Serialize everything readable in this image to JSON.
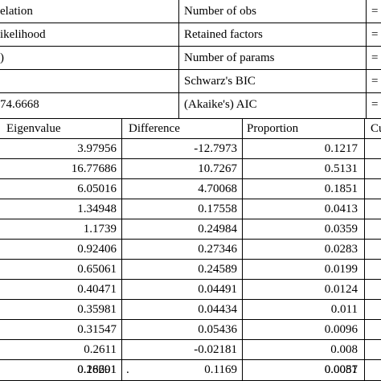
{
  "stats": [
    {
      "left": "elation",
      "right": "Number of obs",
      "eq": "="
    },
    {
      "left": "ikelihood",
      "right": "Retained factors",
      "eq": "="
    },
    {
      "left": ")",
      "right": "Number of params",
      "eq": "="
    },
    {
      "left": "",
      "right": "Schwarz's BIC",
      "eq": "="
    },
    {
      "left": "74.6668",
      "right": "(Akaike's) AIC",
      "eq": "="
    }
  ],
  "table": {
    "headers": {
      "eigenvalue": "Eigenvalue",
      "difference": "Difference",
      "proportion": "Proportion",
      "cumulative": "Cu"
    },
    "rows": [
      {
        "eigenvalue": "3.97956",
        "difference": "-12.7973",
        "proportion": "0.1217"
      },
      {
        "eigenvalue": "16.77686",
        "difference": "10.7267",
        "proportion": "0.5131"
      },
      {
        "eigenvalue": "6.05016",
        "difference": "4.70068",
        "proportion": "0.1851"
      },
      {
        "eigenvalue": "1.34948",
        "difference": "0.17558",
        "proportion": "0.0413"
      },
      {
        "eigenvalue": "1.1739",
        "difference": "0.24984",
        "proportion": "0.0359"
      },
      {
        "eigenvalue": "0.92406",
        "difference": "0.27346",
        "proportion": "0.0283"
      },
      {
        "eigenvalue": "0.65061",
        "difference": "0.24589",
        "proportion": "0.0199"
      },
      {
        "eigenvalue": "0.40471",
        "difference": "0.04491",
        "proportion": "0.0124"
      },
      {
        "eigenvalue": "0.35981",
        "difference": "0.04434",
        "proportion": "0.011"
      },
      {
        "eigenvalue": "0.31547",
        "difference": "0.05436",
        "proportion": "0.0096"
      },
      {
        "eigenvalue": "0.2611",
        "difference": "-0.02181",
        "proportion": "0.008"
      },
      {
        "eigenvalue": "0.28291",
        "difference": "0.1169",
        "proportion": "0.0087"
      },
      {
        "eigenvalue": "0.16601",
        "difference": ".",
        "proportion": "0.0051"
      }
    ]
  }
}
